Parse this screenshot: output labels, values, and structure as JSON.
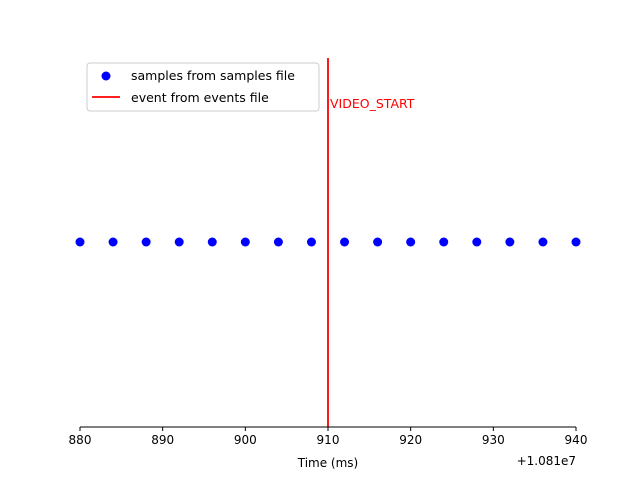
{
  "chart_data": {
    "type": "scatter",
    "title": "",
    "xlabel": "Time (ms)",
    "ylabel": "",
    "x_offset_label": "+1.081e7",
    "xlim": [
      880,
      940
    ],
    "xticks": [
      880,
      890,
      900,
      910,
      920,
      930,
      940
    ],
    "y_axis_visible": false,
    "grid": false,
    "legend_position": "upper-left",
    "series": [
      {
        "name": "samples from samples file",
        "kind": "marker",
        "color": "#0000ff",
        "x": [
          880,
          884,
          888,
          892,
          896,
          900,
          904,
          908,
          912,
          916,
          920,
          924,
          928,
          932,
          936,
          940
        ],
        "y": [
          0,
          0,
          0,
          0,
          0,
          0,
          0,
          0,
          0,
          0,
          0,
          0,
          0,
          0,
          0,
          0
        ]
      },
      {
        "name": "event from events file",
        "kind": "vline",
        "color": "#ff0000",
        "x": 910,
        "annotation": "VIDEO_START"
      }
    ]
  }
}
